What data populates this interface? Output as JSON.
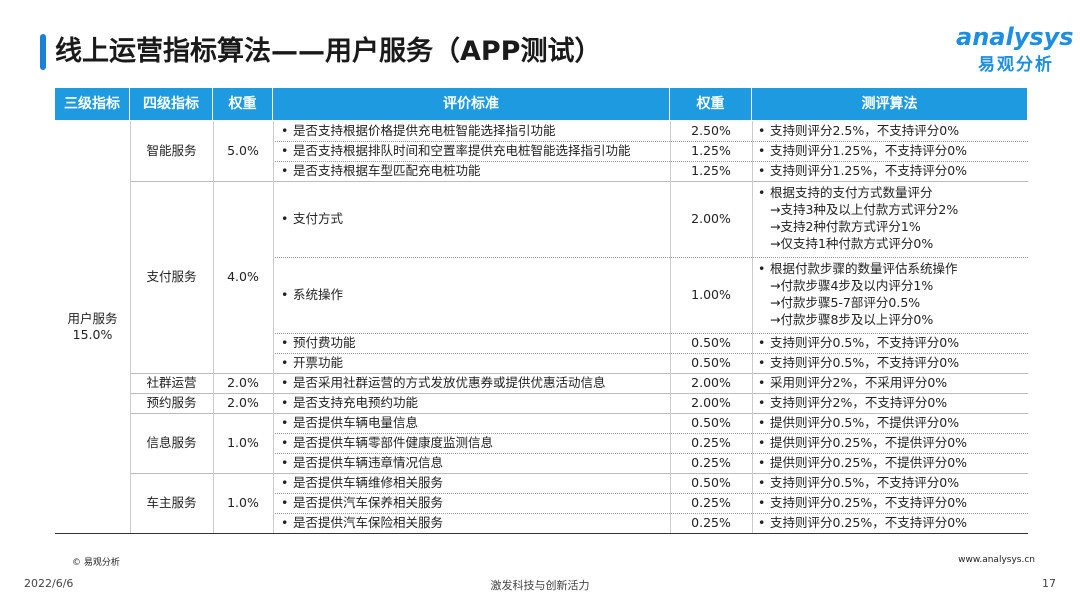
{
  "header": {
    "title": "线上运营指标算法——用户服务（APP测试）"
  },
  "logo": {
    "brand": "analysys",
    "name": "易观分析"
  },
  "table": {
    "headers": [
      "三级指标",
      "四级指标",
      "权重",
      "评价标准",
      "权重",
      "测评算法"
    ],
    "level3": {
      "name": "用户服务",
      "weight": "15.0%"
    },
    "groups": [
      {
        "name": "智能服务",
        "weight": "5.0%",
        "items": [
          {
            "criterion": "是否支持根据价格提供充电桩智能选择指引功能",
            "weight": "2.50%",
            "method": [
              "支持则评分2.5%，不支持评分0%"
            ]
          },
          {
            "criterion": "是否支持根据排队时间和空置率提供充电桩智能选择指引功能",
            "weight": "1.25%",
            "method": [
              "支持则评分1.25%，不支持评分0%"
            ]
          },
          {
            "criterion": "是否支持根据车型匹配充电桩功能",
            "weight": "1.25%",
            "method": [
              "支持则评分1.25%，不支持评分0%"
            ]
          }
        ]
      },
      {
        "name": "支付服务",
        "weight": "4.0%",
        "items": [
          {
            "criterion": "支付方式",
            "weight": "2.00%",
            "method": [
              "根据支持的支付方式数量评分",
              "→支持3种及以上付款方式评分2%",
              "→支持2种付款方式评分1%",
              "→仅支持1种付款方式评分0%"
            ]
          },
          {
            "criterion": "系统操作",
            "weight": "1.00%",
            "method": [
              "根据付款步骤的数量评估系统操作",
              "→付款步骤4步及以内评分1%",
              "→付款步骤5-7部评分0.5%",
              "→付款步骤8步及以上评分0%"
            ]
          },
          {
            "criterion": "预付费功能",
            "weight": "0.50%",
            "method": [
              "支持则评分0.5%，不支持评分0%"
            ]
          },
          {
            "criterion": "开票功能",
            "weight": "0.50%",
            "method": [
              "支持则评分0.5%，不支持评分0%"
            ]
          }
        ]
      },
      {
        "name": "社群运营",
        "weight": "2.0%",
        "items": [
          {
            "criterion": "是否采用社群运营的方式发放优惠券或提供优惠活动信息",
            "weight": "2.00%",
            "method": [
              "采用则评分2%，不采用评分0%"
            ]
          }
        ]
      },
      {
        "name": "预约服务",
        "weight": "2.0%",
        "items": [
          {
            "criterion": "是否支持充电预约功能",
            "weight": "2.00%",
            "method": [
              "支持则评分2%，不支持评分0%"
            ]
          }
        ]
      },
      {
        "name": "信息服务",
        "weight": "1.0%",
        "items": [
          {
            "criterion": "是否提供车辆电量信息",
            "weight": "0.50%",
            "method": [
              "提供则评分0.5%，不提供评分0%"
            ]
          },
          {
            "criterion": "是否提供车辆零部件健康度监测信息",
            "weight": "0.25%",
            "method": [
              "提供则评分0.25%，不提供评分0%"
            ]
          },
          {
            "criterion": "是否提供车辆违章情况信息",
            "weight": "0.25%",
            "method": [
              "提供则评分0.25%，不提供评分0%"
            ]
          }
        ]
      },
      {
        "name": "车主服务",
        "weight": "1.0%",
        "items": [
          {
            "criterion": "是否提供车辆维修相关服务",
            "weight": "0.50%",
            "method": [
              "支持则评分0.5%，不支持评分0%"
            ]
          },
          {
            "criterion": "是否提供汽车保养相关服务",
            "weight": "0.25%",
            "method": [
              "支持则评分0.25%，不支持评分0%"
            ]
          },
          {
            "criterion": "是否提供汽车保险相关服务",
            "weight": "0.25%",
            "method": [
              "支持则评分0.25%，不支持评分0%"
            ]
          }
        ]
      }
    ]
  },
  "footer": {
    "copyright": "© 易观分析",
    "website": "www.analysys.cn",
    "date": "2022/6/6",
    "slogan": "激发科技与创新活力",
    "page": "17"
  }
}
